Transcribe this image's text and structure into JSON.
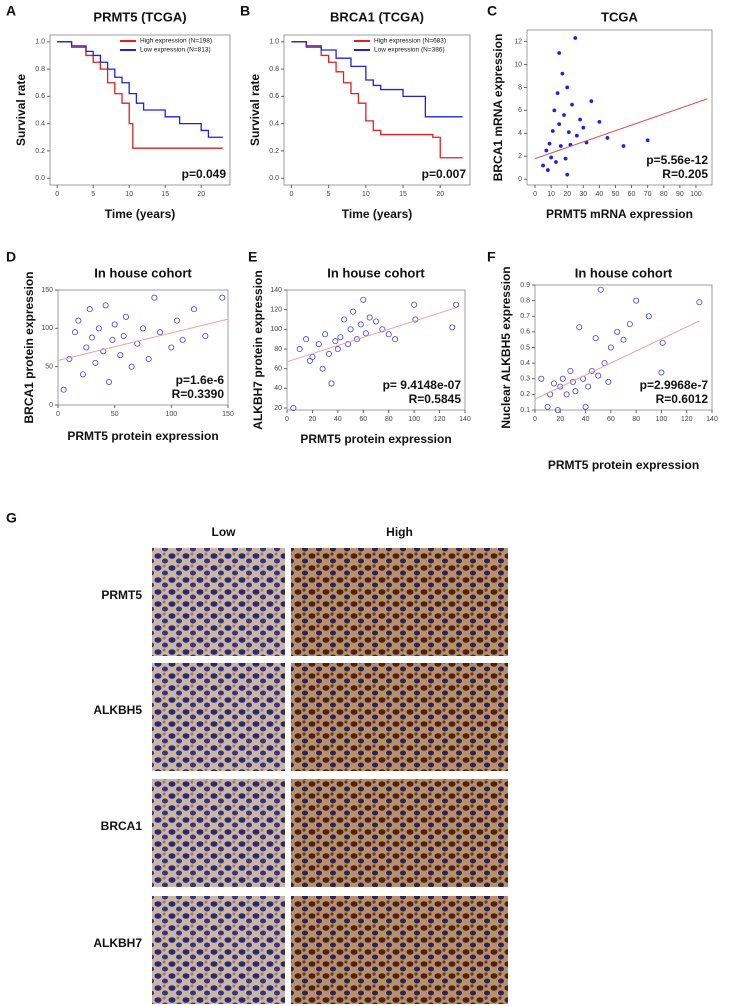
{
  "chart_data": [
    {
      "type": "line",
      "panel": "A",
      "title": "PRMT5 (TCGA)",
      "xlabel": "Time (years)",
      "ylabel": "Survival  rate",
      "annotations": [
        "p=0.049"
      ],
      "xlim": [
        -1,
        24
      ],
      "xticks": [
        0,
        5,
        10,
        15,
        20
      ],
      "ylim": [
        -0.05,
        1.05
      ],
      "yticks": [
        {
          "value": 0,
          "label": "0.0"
        },
        0.2,
        0.4,
        0.6,
        0.8,
        {
          "value": 1,
          "label": "1.0"
        }
      ],
      "series": [
        {
          "name": "High expression (N=198)",
          "color": "#e02020",
          "x": [
            0,
            2,
            4,
            5,
            6,
            7,
            8,
            9,
            10,
            10.5,
            23
          ],
          "values": [
            1,
            0.96,
            0.9,
            0.85,
            0.8,
            0.7,
            0.62,
            0.55,
            0.4,
            0.22,
            0.22
          ]
        },
        {
          "name": "Low expression (N=813)",
          "color": "#2020e0",
          "x": [
            0,
            2,
            4,
            5,
            6,
            7,
            8,
            9,
            10,
            11,
            12,
            14,
            15,
            17,
            20,
            21,
            23
          ],
          "values": [
            1,
            0.97,
            0.93,
            0.9,
            0.85,
            0.8,
            0.74,
            0.7,
            0.62,
            0.55,
            0.5,
            0.5,
            0.45,
            0.4,
            0.35,
            0.3,
            0.3
          ]
        }
      ]
    },
    {
      "type": "line",
      "panel": "B",
      "title": "BRCA1 (TCGA)",
      "xlabel": "Time (years)",
      "ylabel": "Survival  rate",
      "annotations": [
        "p=0.007"
      ],
      "xlim": [
        -1,
        24
      ],
      "xticks": [
        0,
        5,
        10,
        15,
        20
      ],
      "ylim": [
        -0.05,
        1.05
      ],
      "yticks": [
        {
          "value": 0,
          "label": "0.0"
        },
        0.2,
        0.4,
        0.6,
        0.8,
        {
          "value": 1,
          "label": "1.0"
        }
      ],
      "series": [
        {
          "name": "High expression (N=683)",
          "color": "#e02020",
          "x": [
            0,
            2,
            4,
            5,
            6,
            7,
            8,
            9,
            10,
            11,
            12,
            15,
            19,
            20,
            23
          ],
          "values": [
            1,
            0.96,
            0.9,
            0.85,
            0.78,
            0.7,
            0.62,
            0.55,
            0.42,
            0.35,
            0.32,
            0.32,
            0.3,
            0.15,
            0.15
          ]
        },
        {
          "name": "Low expression (N=386)",
          "color": "#2020e0",
          "x": [
            0,
            2,
            4,
            6,
            8,
            10,
            11,
            12,
            15,
            18,
            20,
            23
          ],
          "values": [
            1,
            0.97,
            0.94,
            0.88,
            0.82,
            0.72,
            0.68,
            0.65,
            0.6,
            0.45,
            0.45,
            0.45
          ]
        }
      ]
    },
    {
      "type": "scatter",
      "panel": "C",
      "title": "TCGA",
      "xlabel": "PRMT5 mRNA  expression",
      "ylabel": "BRCA1 mRNA  expression",
      "annotations": [
        "p=5.56e-12",
        "R=0.205"
      ],
      "filled": true,
      "color": "#2020e0",
      "trend_color": "#e05050",
      "xlim": [
        -5,
        110
      ],
      "xticks": [
        0,
        10,
        20,
        30,
        40,
        50,
        60,
        70,
        80,
        90,
        100
      ],
      "ylim": [
        -0.5,
        13
      ],
      "yticks": [
        0,
        2,
        4,
        6,
        8,
        10,
        12
      ],
      "x": [
        5,
        7,
        8,
        9,
        10,
        11,
        12,
        13,
        14,
        15,
        16,
        17,
        18,
        19,
        20,
        21,
        22,
        23,
        25,
        26,
        28,
        30,
        32,
        35,
        40,
        45,
        55,
        70,
        15,
        20
      ],
      "values": [
        1.2,
        2.5,
        0.8,
        3.1,
        1.9,
        4.2,
        6.0,
        1.5,
        7.5,
        4.8,
        2.9,
        9.2,
        5.6,
        1.8,
        8.0,
        4.1,
        3.0,
        6.5,
        12.3,
        3.8,
        5.2,
        4.5,
        3.2,
        6.8,
        5.0,
        3.6,
        2.9,
        3.4,
        11.0,
        0.4
      ],
      "trend": {
        "x": [
          0,
          107
        ],
        "y": [
          1.8,
          7
        ]
      }
    },
    {
      "type": "scatter",
      "panel": "D",
      "title": "In house cohort",
      "xlabel": "PRMT5 protein expression",
      "ylabel": "BRCA1 protein expression",
      "annotations": [
        "p=1.6e-6",
        "R=0.3390"
      ],
      "filled": false,
      "color": "#4040e0",
      "trend_color": "#f0a0a0",
      "xlim": [
        0,
        150
      ],
      "xticks": [
        0,
        50,
        100,
        150
      ],
      "ylim": [
        0,
        150
      ],
      "yticks": [
        0,
        50,
        100,
        150
      ],
      "x": [
        5,
        10,
        15,
        18,
        22,
        25,
        28,
        30,
        33,
        36,
        40,
        42,
        45,
        48,
        50,
        55,
        58,
        60,
        65,
        70,
        75,
        80,
        85,
        90,
        100,
        105,
        110,
        120,
        130,
        145
      ],
      "values": [
        20,
        60,
        95,
        110,
        40,
        75,
        125,
        88,
        55,
        100,
        70,
        130,
        30,
        85,
        105,
        65,
        90,
        115,
        50,
        80,
        100,
        60,
        140,
        95,
        75,
        110,
        85,
        125,
        90,
        140
      ],
      "trend": {
        "x": [
          0,
          150
        ],
        "y": [
          58,
          112
        ]
      }
    },
    {
      "type": "scatter",
      "panel": "E",
      "title": "In house cohort",
      "xlabel": "PRMT5 protein expression",
      "ylabel": "ALKBH7 protein expression",
      "annotations": [
        "p= 9.4148e-07",
        "R=0.5845"
      ],
      "filled": false,
      "color": "#4040e0",
      "trend_color": "#f0a0a0",
      "xlim": [
        0,
        140
      ],
      "xticks": [
        0,
        20,
        40,
        60,
        80,
        100,
        120,
        140
      ],
      "ylim": [
        18,
        140
      ],
      "yticks": [
        20,
        40,
        60,
        80,
        100,
        120,
        140
      ],
      "x": [
        5,
        10,
        15,
        18,
        20,
        25,
        28,
        30,
        33,
        35,
        38,
        40,
        42,
        45,
        48,
        50,
        52,
        55,
        58,
        60,
        62,
        65,
        70,
        75,
        80,
        85,
        100,
        101,
        130,
        133
      ],
      "values": [
        20,
        80,
        90,
        68,
        72,
        85,
        60,
        95,
        75,
        45,
        88,
        80,
        92,
        110,
        85,
        100,
        118,
        90,
        105,
        130,
        96,
        112,
        108,
        100,
        95,
        90,
        125,
        110,
        102,
        125
      ],
      "trend": {
        "x": [
          0,
          133
        ],
        "y": [
          67,
          122
        ]
      }
    },
    {
      "type": "scatter",
      "panel": "F",
      "title": "In house cohort",
      "xlabel": "PRMT5 protein expression",
      "ylabel": "Nuclear ALKBH5 expression",
      "annotations": [
        "p=2.9968e-7",
        "R=0.6012"
      ],
      "filled": false,
      "color": "#4040e0",
      "trend_color": "#f0a0a0",
      "xlim": [
        0,
        140
      ],
      "xticks": [
        0,
        20,
        40,
        60,
        80,
        100,
        120,
        140
      ],
      "ylim": [
        0.1,
        0.9
      ],
      "yticks": [
        0.1,
        0.2,
        0.3,
        0.4,
        0.5,
        0.6,
        0.7,
        0.8,
        0.9
      ],
      "x": [
        5,
        10,
        12,
        15,
        18,
        20,
        22,
        25,
        28,
        30,
        32,
        35,
        38,
        40,
        42,
        45,
        48,
        50,
        52,
        55,
        58,
        60,
        65,
        70,
        75,
        80,
        90,
        100,
        101,
        130
      ],
      "values": [
        0.3,
        0.12,
        0.2,
        0.27,
        0.1,
        0.25,
        0.3,
        0.2,
        0.35,
        0.28,
        0.22,
        0.63,
        0.3,
        0.12,
        0.25,
        0.35,
        0.56,
        0.32,
        0.87,
        0.4,
        0.28,
        0.5,
        0.6,
        0.55,
        0.65,
        0.8,
        0.7,
        0.34,
        0.53,
        0.79
      ],
      "trend": {
        "x": [
          0,
          130
        ],
        "y": [
          0.17,
          0.67
        ]
      }
    }
  ],
  "ihc": {
    "panel": "G",
    "columns": [
      "Low",
      "High"
    ],
    "rows": [
      "PRMT5",
      "ALKBH5",
      "BRCA1",
      "ALKBH7"
    ]
  }
}
